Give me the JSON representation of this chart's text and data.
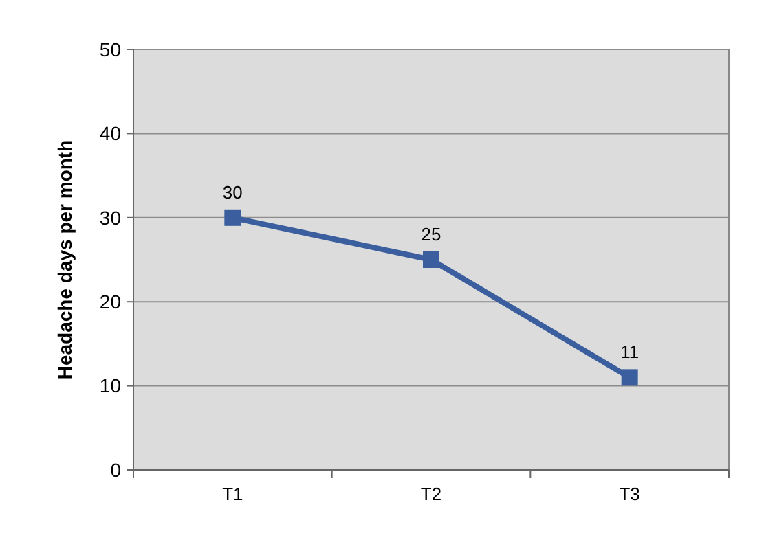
{
  "chart_data": {
    "type": "line",
    "ylabel": "Headache days per month",
    "categories": [
      "T1",
      "T2",
      "T3"
    ],
    "series": [
      {
        "color": "#3a5e9e",
        "values": [
          30,
          25,
          11
        ]
      }
    ],
    "ylim": [
      0,
      50
    ],
    "yticks": [
      0,
      10,
      20,
      30,
      40,
      50
    ],
    "grid": "y",
    "marker": "square",
    "line_style": "solid",
    "data_labels": true
  }
}
